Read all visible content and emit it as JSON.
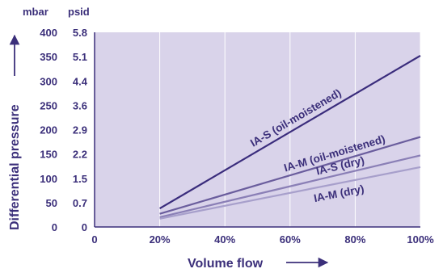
{
  "chart_data": {
    "type": "line",
    "xlabel": "Volume flow",
    "ylabel": "Differential pressure",
    "y_units": [
      "mbar",
      "psid"
    ],
    "x_ticks": [
      "0",
      "20%",
      "40%",
      "60%",
      "80%",
      "100%"
    ],
    "x_values": [
      0,
      20,
      40,
      60,
      80,
      100
    ],
    "y_ticks_mbar": [
      "0",
      "50",
      "100",
      "150",
      "200",
      "250",
      "300",
      "350",
      "400"
    ],
    "y_ticks_psid": [
      "0",
      "0.7",
      "1.5",
      "2.2",
      "2.9",
      "3.6",
      "4.4",
      "5.1",
      "5.8"
    ],
    "xlim": [
      0,
      100
    ],
    "ylim": [
      0,
      400
    ],
    "grid": "vertical",
    "colors": {
      "plot_bg": "#d9d3ea",
      "text": "#3b2f7a",
      "grid": "#ffffff"
    },
    "series": [
      {
        "name": "IA-S (oil-moistened)",
        "color": "#3a2c7c",
        "x": [
          20,
          100
        ],
        "y": [
          38,
          352
        ]
      },
      {
        "name": "IA-M (oil-moistened)",
        "color": "#6a5d9d",
        "x": [
          20,
          100
        ],
        "y": [
          27,
          185
        ]
      },
      {
        "name": "IA-S (dry)",
        "color": "#8a7fb6",
        "x": [
          20,
          100
        ],
        "y": [
          20,
          147
        ]
      },
      {
        "name": "IA-M (dry)",
        "color": "#a79fcb",
        "x": [
          20,
          100
        ],
        "y": [
          17,
          123
        ]
      }
    ]
  }
}
